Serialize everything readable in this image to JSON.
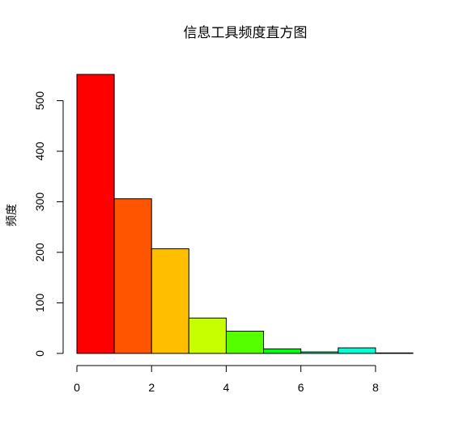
{
  "chart_data": {
    "type": "bar",
    "title": "信息工具频度直方图",
    "xlabel": "",
    "ylabel": "频度",
    "bins": [
      {
        "x0": 0,
        "x1": 1,
        "value": 552,
        "color": "#FF0000"
      },
      {
        "x0": 1,
        "x1": 2,
        "value": 306,
        "color": "#FF5500"
      },
      {
        "x0": 2,
        "x1": 3,
        "value": 207,
        "color": "#FFBF00"
      },
      {
        "x0": 3,
        "x1": 4,
        "value": 70,
        "color": "#C8FF00"
      },
      {
        "x0": 4,
        "x1": 5,
        "value": 44,
        "color": "#55FF00"
      },
      {
        "x0": 5,
        "x1": 6,
        "value": 9,
        "color": "#00FF15"
      },
      {
        "x0": 6,
        "x1": 7,
        "value": 3,
        "color": "#00FF8C"
      },
      {
        "x0": 7,
        "x1": 8,
        "value": 11,
        "color": "#00FFD4"
      },
      {
        "x0": 8,
        "x1": 9,
        "value": 1,
        "color": "#00D4FF"
      }
    ],
    "xlim": [
      0,
      9
    ],
    "ylim": [
      0,
      552
    ],
    "x_ticks": [
      "0",
      "2",
      "4",
      "6",
      "8"
    ],
    "y_ticks": [
      "0",
      "100",
      "200",
      "300",
      "400",
      "500"
    ],
    "grid": false,
    "legend": "none"
  }
}
